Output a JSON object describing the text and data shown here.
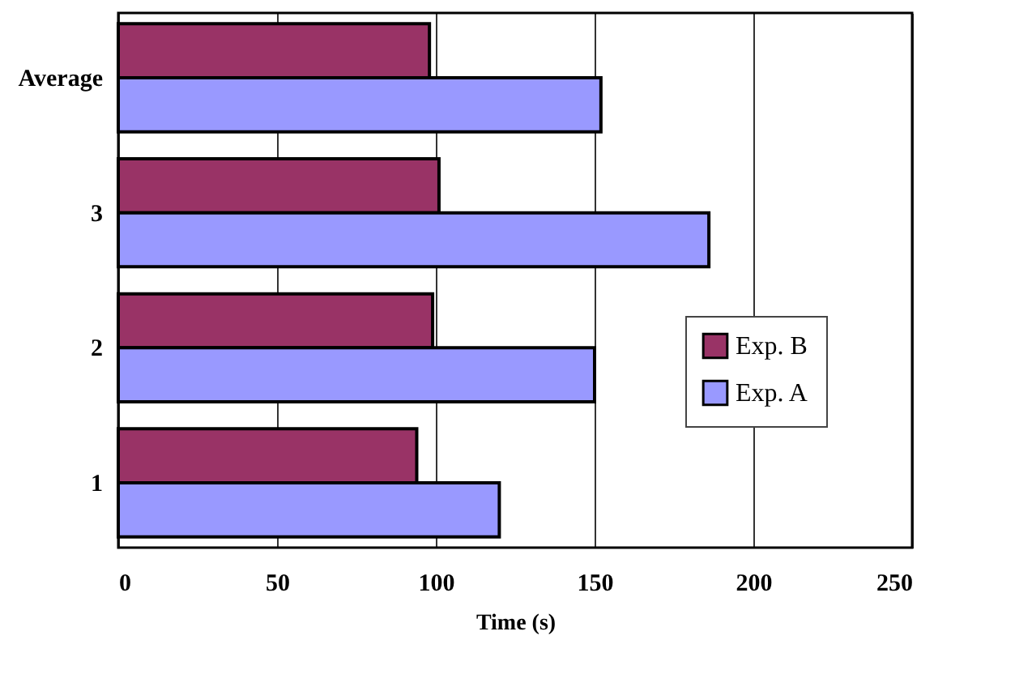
{
  "chart_data": {
    "type": "bar",
    "orientation": "horizontal",
    "xlabel": "Time (s)",
    "categories": [
      "Average",
      "3",
      "2",
      "1"
    ],
    "series": [
      {
        "name": "Exp. B",
        "color": "#993366",
        "values": [
          98,
          101,
          99,
          94
        ]
      },
      {
        "name": "Exp. A",
        "color": "#9999ff",
        "values": [
          152,
          186,
          150,
          120
        ]
      }
    ],
    "xlim": [
      0,
      250
    ],
    "xticks": [
      0,
      50,
      100,
      150,
      200,
      250
    ],
    "grid": "x",
    "legend": "right"
  }
}
